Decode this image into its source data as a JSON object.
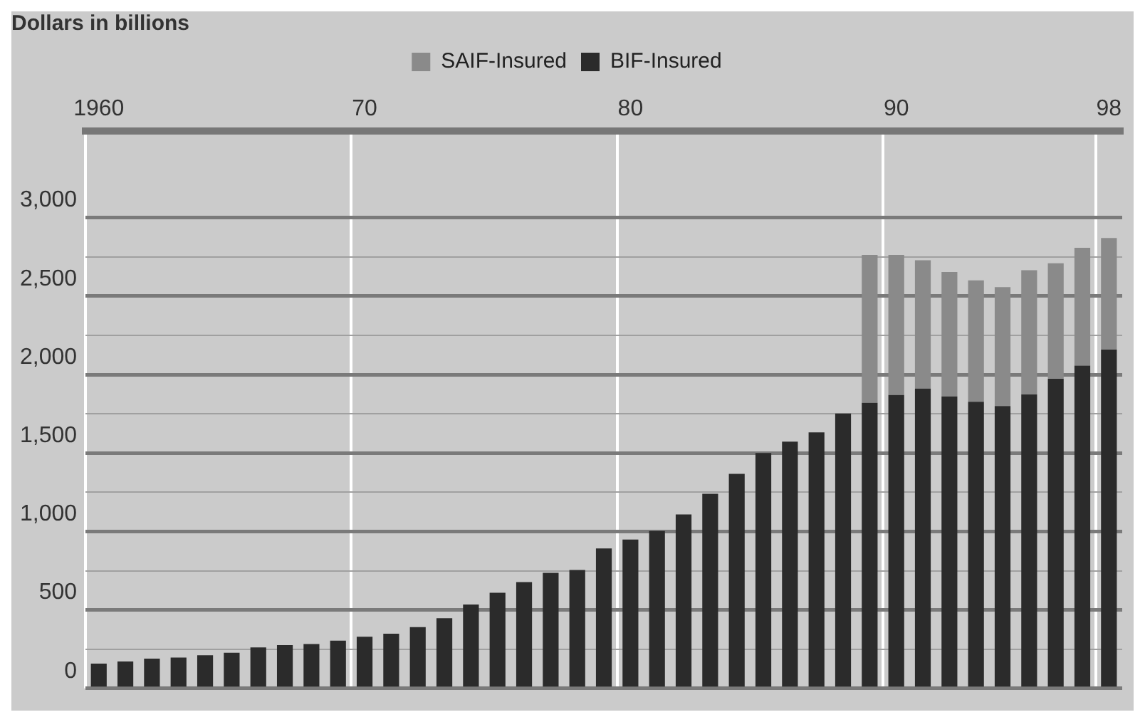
{
  "chart_data": {
    "type": "bar",
    "ylabel": "Dollars in billions",
    "categories": [
      "1960",
      null,
      null,
      null,
      null,
      null,
      null,
      null,
      null,
      null,
      "70",
      null,
      null,
      null,
      null,
      null,
      null,
      null,
      null,
      null,
      "80",
      null,
      null,
      null,
      null,
      null,
      null,
      null,
      null,
      null,
      "90",
      null,
      null,
      null,
      null,
      null,
      null,
      null,
      "98"
    ],
    "stacked": true,
    "series": [
      {
        "name": "BIF-Insured",
        "color": "#2b2b2b",
        "values": [
          158,
          171,
          190,
          196,
          211,
          227,
          261,
          276,
          283,
          304,
          329,
          348,
          391,
          447,
          534,
          609,
          677,
          736,
          755,
          892,
          948,
          1003,
          1109,
          1240,
          1367,
          1500,
          1572,
          1631,
          1752,
          1820,
          1870,
          1911,
          1861,
          1827,
          1799,
          1873,
          1973,
          2057,
          2159
        ]
      },
      {
        "name": "SAIF-Insured",
        "color": "#8a8a8a",
        "values": [
          null,
          null,
          null,
          null,
          null,
          null,
          null,
          null,
          null,
          null,
          null,
          null,
          null,
          null,
          null,
          null,
          null,
          null,
          null,
          null,
          null,
          null,
          null,
          null,
          null,
          null,
          null,
          null,
          null,
          942,
          892,
          817,
          792,
          773,
          758,
          792,
          736,
          751,
          711
        ]
      }
    ],
    "ylim": [
      0,
      3550
    ],
    "yticks": [
      0,
      {
        "value": 250,
        "label": null
      },
      {
        "value": 500,
        "label": "500"
      },
      {
        "value": 750,
        "label": null
      },
      {
        "value": 1000,
        "label": "1,000"
      },
      {
        "value": 1250,
        "label": null
      },
      {
        "value": 1500,
        "label": "1,500"
      },
      {
        "value": 1750,
        "label": null
      },
      {
        "value": 2000,
        "label": "2,000"
      },
      {
        "value": 2250,
        "label": null
      },
      {
        "value": 2500,
        "label": "2,500"
      },
      {
        "value": 2750,
        "label": null
      },
      {
        "value": 3000,
        "label": "3,000"
      }
    ],
    "grid": true,
    "legend": "top"
  }
}
